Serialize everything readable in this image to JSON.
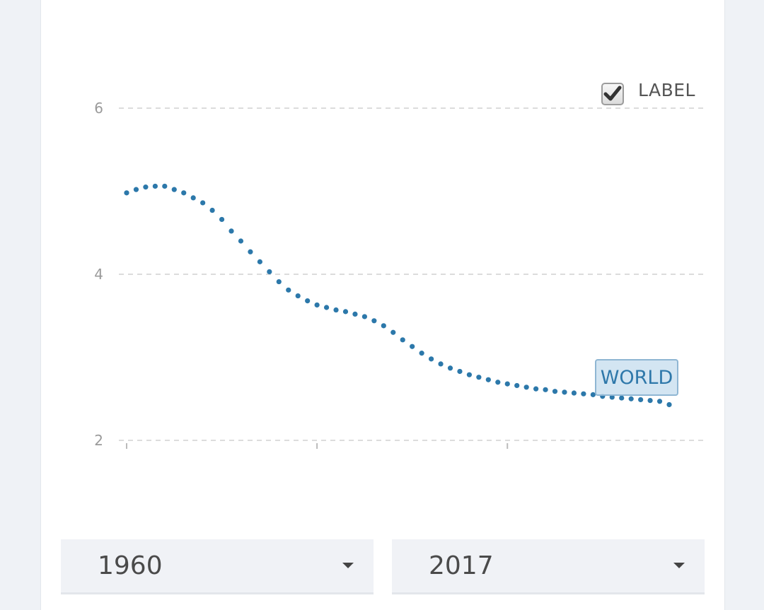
{
  "chart_data": {
    "type": "line",
    "line_style": "dotted",
    "series": [
      {
        "name": "WORLD",
        "color": "#2c78aa",
        "x": [
          1960,
          1961,
          1962,
          1963,
          1964,
          1965,
          1966,
          1967,
          1968,
          1969,
          1970,
          1971,
          1972,
          1973,
          1974,
          1975,
          1976,
          1977,
          1978,
          1979,
          1980,
          1981,
          1982,
          1983,
          1984,
          1985,
          1986,
          1987,
          1988,
          1989,
          1990,
          1991,
          1992,
          1993,
          1994,
          1995,
          1996,
          1997,
          1998,
          1999,
          2000,
          2001,
          2002,
          2003,
          2004,
          2005,
          2006,
          2007,
          2008,
          2009,
          2010,
          2011,
          2012,
          2013,
          2014,
          2015,
          2016,
          2017
        ],
        "values": [
          4.98,
          5.02,
          5.05,
          5.06,
          5.06,
          5.02,
          4.98,
          4.92,
          4.86,
          4.77,
          4.66,
          4.52,
          4.4,
          4.27,
          4.15,
          4.03,
          3.91,
          3.81,
          3.74,
          3.68,
          3.63,
          3.6,
          3.57,
          3.55,
          3.52,
          3.49,
          3.44,
          3.38,
          3.3,
          3.21,
          3.13,
          3.05,
          2.98,
          2.92,
          2.87,
          2.83,
          2.79,
          2.76,
          2.73,
          2.7,
          2.68,
          2.66,
          2.64,
          2.62,
          2.61,
          2.59,
          2.58,
          2.57,
          2.56,
          2.55,
          2.53,
          2.52,
          2.51,
          2.5,
          2.49,
          2.48,
          2.47,
          2.43
        ]
      }
    ],
    "ylim": [
      2,
      6.1
    ],
    "yticks": [
      "2",
      "4",
      "6"
    ],
    "grid": true,
    "series_label_enabled": true
  },
  "label_toggle": {
    "text": "LABEL",
    "checked": true
  },
  "series_tag": "WORLD",
  "start_year": "1960",
  "end_year": "2017"
}
